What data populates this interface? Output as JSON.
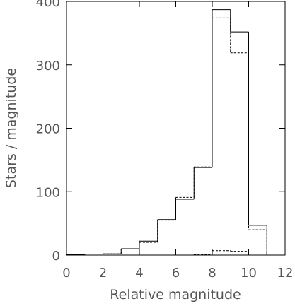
{
  "chart_data": {
    "type": "histogram-step",
    "title": "",
    "xlabel": "Relative magnitude",
    "ylabel": "Stars / magnitude",
    "xlim": [
      0,
      12
    ],
    "ylim": [
      0,
      400
    ],
    "x_ticks": [
      0,
      2,
      4,
      6,
      8,
      10,
      12
    ],
    "y_ticks": [
      0,
      100,
      200,
      300,
      400
    ],
    "grid": false,
    "legend": "none",
    "bin_edges": [
      0,
      1,
      2,
      3,
      4,
      5,
      6,
      7,
      8,
      9,
      10,
      11
    ],
    "series": [
      {
        "style": "solid",
        "color": "#000000",
        "values": [
          1,
          0,
          2,
          10,
          22,
          56,
          88,
          138,
          387,
          352,
          47
        ]
      },
      {
        "style": "dashed",
        "color": "#000000",
        "values": [
          1,
          0,
          2,
          10,
          20,
          55,
          91,
          139,
          374,
          319,
          40
        ]
      },
      {
        "style": "dashed",
        "color": "#000000",
        "values": [
          0,
          0,
          0,
          0,
          0,
          0,
          0,
          1,
          7,
          6,
          5
        ]
      }
    ]
  }
}
